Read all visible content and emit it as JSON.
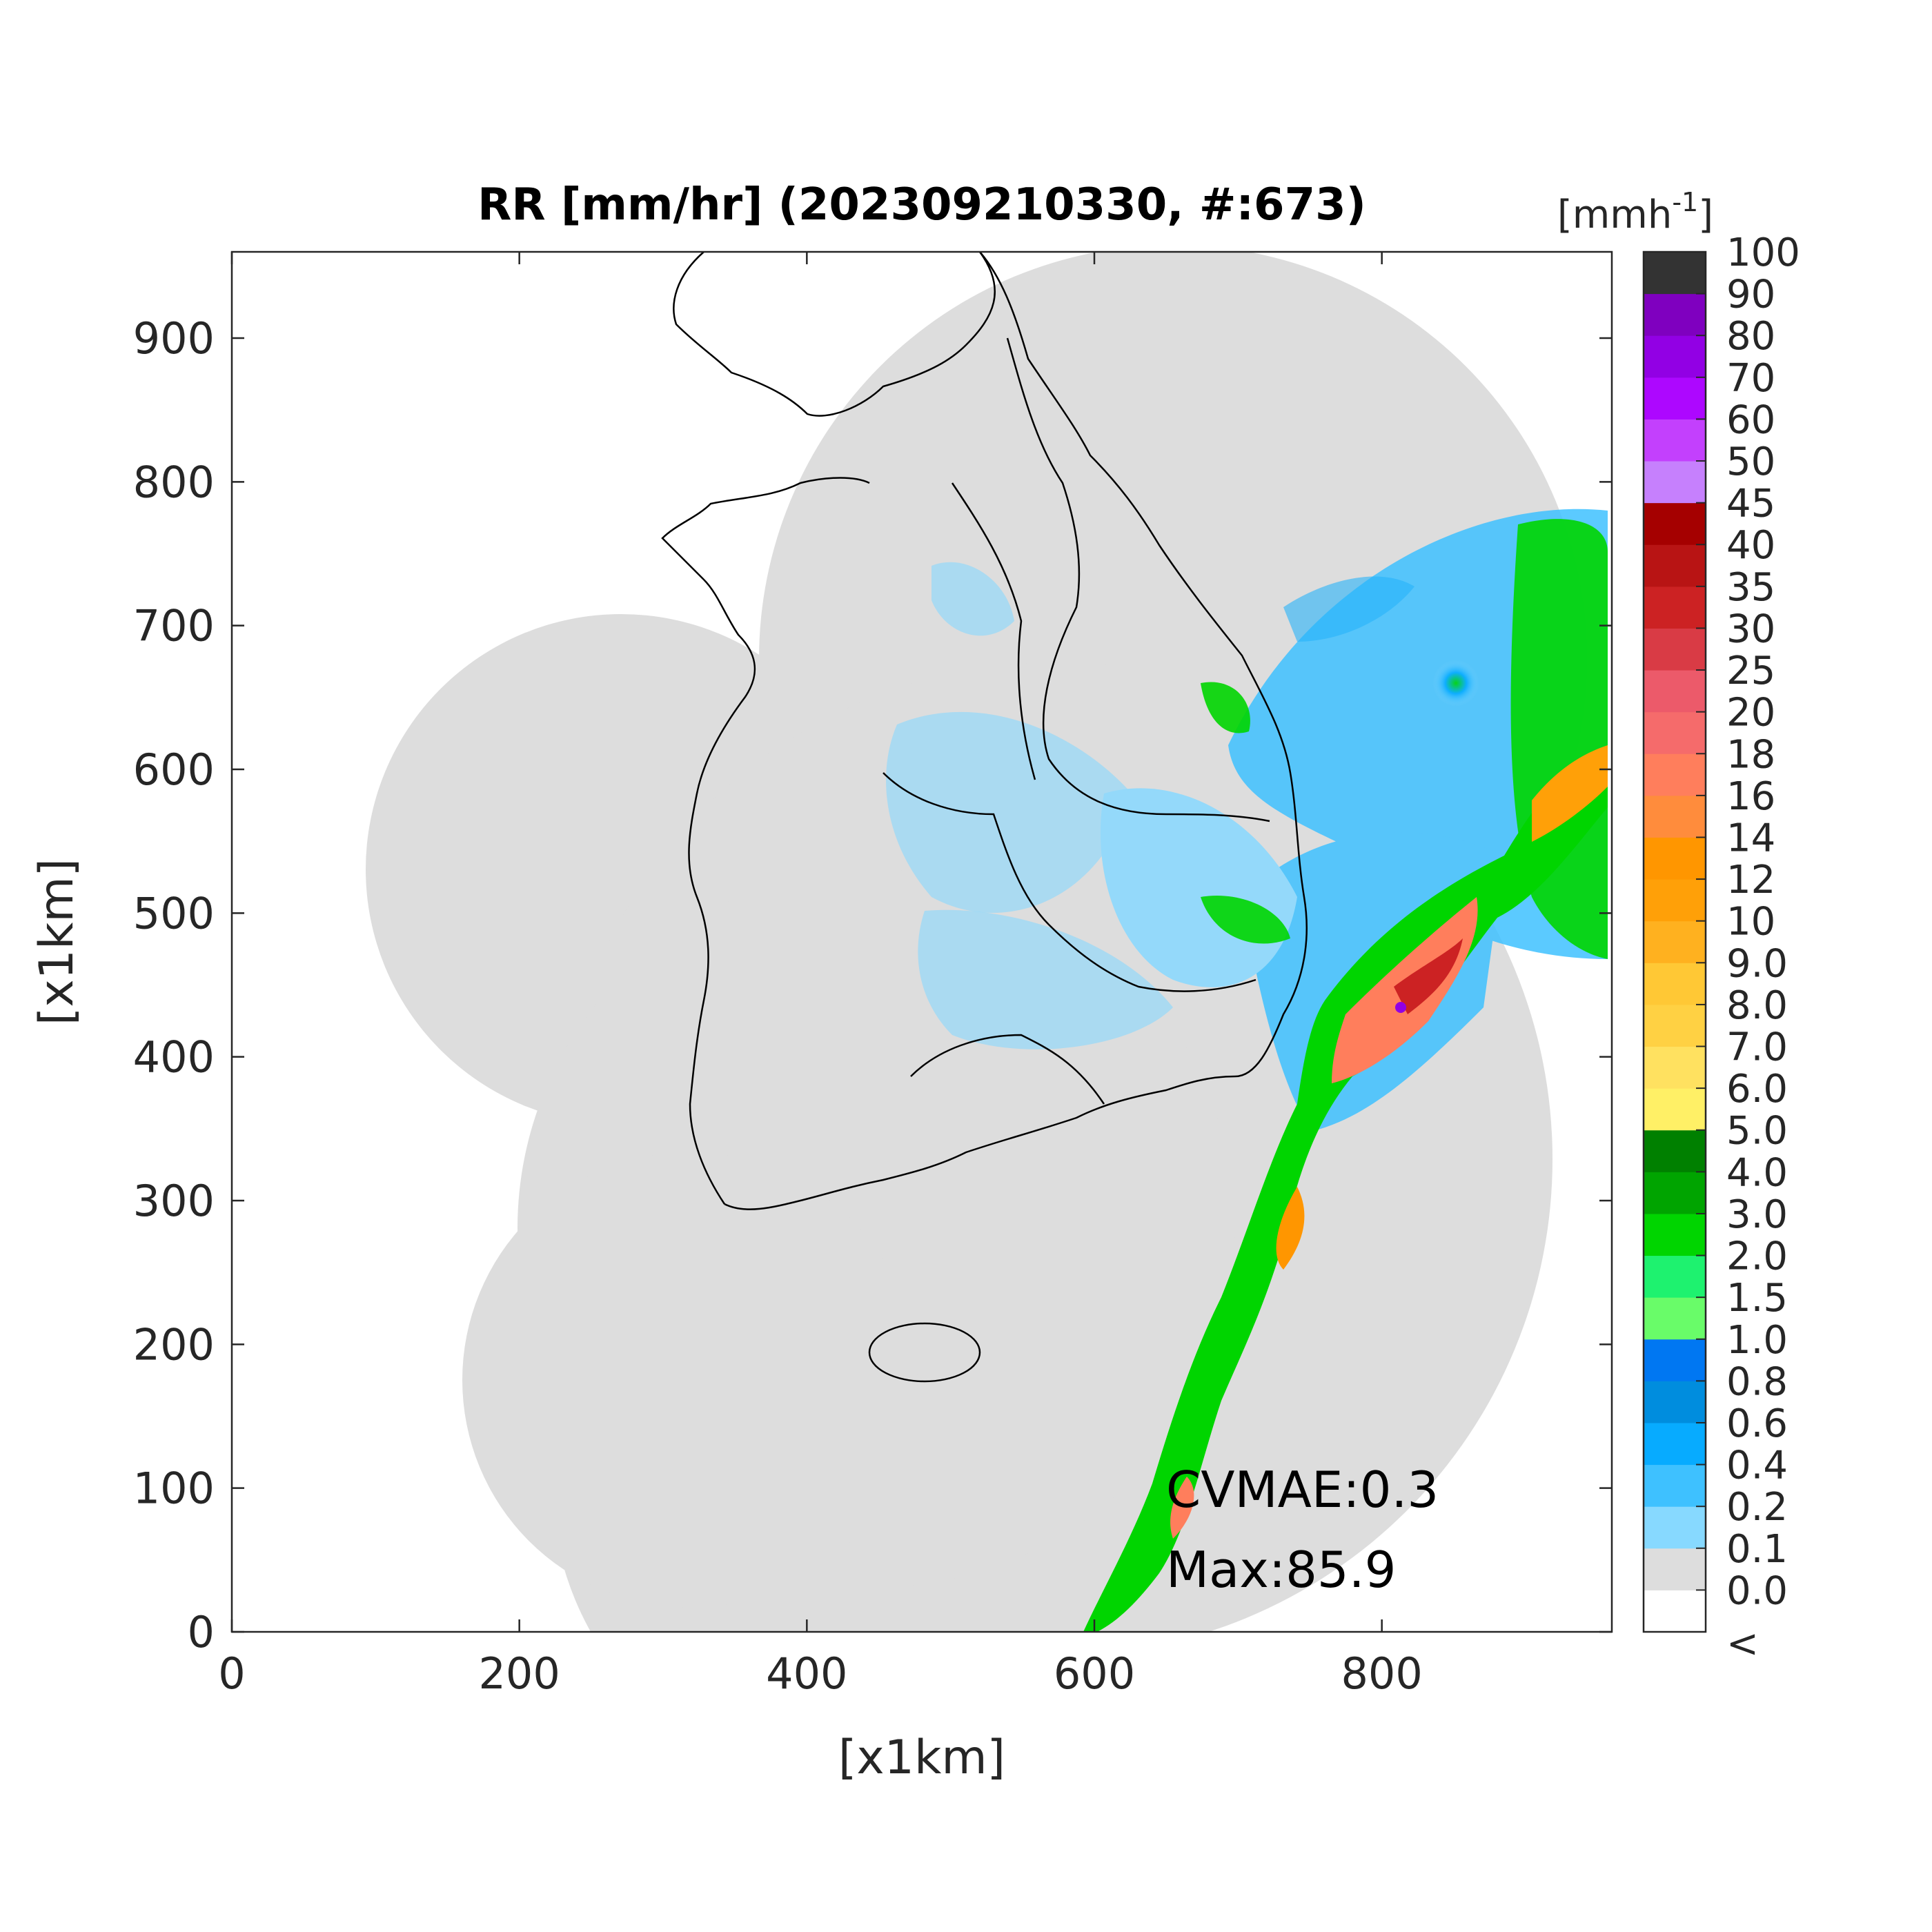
{
  "chart_data": {
    "type": "heatmap",
    "title": "RR [mm/hr] (202309210330, #:673)",
    "xlabel": "[x1km]",
    "ylabel": "[x1km]",
    "xlim": [
      0,
      960
    ],
    "ylim": [
      0,
      960
    ],
    "xticks": [
      "0",
      "200",
      "400",
      "600",
      "800"
    ],
    "xtick_values": [
      0,
      200,
      400,
      600,
      800
    ],
    "yticks": [
      "0",
      "100",
      "200",
      "300",
      "400",
      "500",
      "600",
      "700",
      "800",
      "900"
    ],
    "ytick_values": [
      0,
      100,
      200,
      300,
      400,
      500,
      600,
      700,
      800,
      900
    ],
    "grid": false,
    "colorbar": {
      "unit_base": "[mmh",
      "unit_sup": "-1",
      "unit_end": "]",
      "levels": [
        "<",
        "0.0",
        "0.1",
        "0.2",
        "0.4",
        "0.6",
        "0.8",
        "1.0",
        "1.5",
        "2.0",
        "3.0",
        "4.0",
        "5.0",
        "6.0",
        "7.0",
        "8.0",
        "9.0",
        "10",
        "12",
        "14",
        "16",
        "18",
        "20",
        "25",
        "30",
        "35",
        "40",
        "45",
        "50",
        "60",
        "70",
        "80",
        "90",
        "100"
      ],
      "colors": [
        "#ffffff",
        "#dddddd",
        "#87d9ff",
        "#3ec1ff",
        "#07abff",
        "#008dde",
        "#0077f2",
        "#69fc69",
        "#1ef26f",
        "#00d500",
        "#00a400",
        "#008000",
        "#fff066",
        "#ffe160",
        "#ffd143",
        "#ffc835",
        "#ffb11f",
        "#ffa008",
        "#ff9600",
        "#ff8c3c",
        "#ff7e5c",
        "#f56b6b",
        "#ec5a6a",
        "#d93b45",
        "#cc2223",
        "#b81414",
        "#a50000",
        "#c680fd",
        "#c340fd",
        "#ad07ff",
        "#9200e4",
        "#7f00bf",
        "#333333"
      ]
    },
    "annotations": {
      "cvmae": "CVMAE:0.3",
      "max": "Max:85.9"
    }
  }
}
